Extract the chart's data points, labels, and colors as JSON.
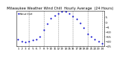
{
  "title": "Milwaukee Weather Wind Chill  Hourly Average  (24 Hours)",
  "title_fontsize": 3.8,
  "hours": [
    1,
    2,
    3,
    4,
    5,
    6,
    7,
    8,
    9,
    10,
    11,
    12,
    13,
    14,
    15,
    16,
    17,
    18,
    19,
    20,
    21,
    22,
    23,
    24
  ],
  "wind_chill": [
    -18,
    -20,
    -21,
    -20,
    -19,
    -18,
    -15,
    -8,
    -2,
    4,
    7,
    9,
    11,
    11,
    9,
    6,
    3,
    -1,
    -6,
    -12,
    -15,
    -18,
    -20,
    -22
  ],
  "line_color": "#0000cc",
  "bg_color": "#ffffff",
  "grid_color": "#888888",
  "ylim": [
    -25,
    12
  ],
  "yticks": [
    5,
    0,
    -5,
    -10,
    -15,
    -20,
    -25
  ],
  "xlabel_fontsize": 3.0,
  "ylabel_fontsize": 3.0,
  "marker_size": 1.2,
  "vline_hours": [
    4,
    8,
    12,
    16,
    20,
    24
  ],
  "legend_label": "Wind Chill"
}
